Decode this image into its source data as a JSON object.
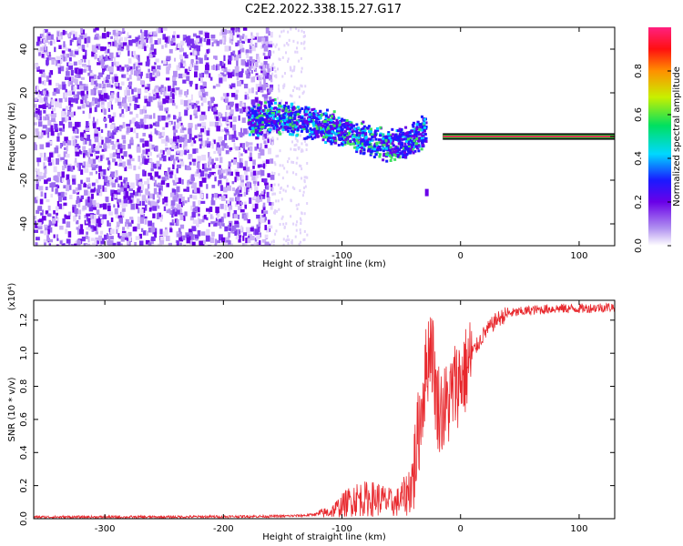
{
  "title": "C2E2.2022.338.15.27.G17",
  "chart_data": [
    {
      "type": "heatmap",
      "xlabel": "Height of straight line (km)",
      "ylabel": "Frequency (Hz)",
      "xlim": [
        -360,
        130
      ],
      "ylim": [
        -50,
        50
      ],
      "xticks": [
        -300,
        -200,
        -100,
        0,
        100
      ],
      "yticks": [
        -40,
        -20,
        0,
        20,
        40
      ],
      "colorbar": {
        "label": "Normalized spectral amplitude",
        "range": [
          0,
          1
        ],
        "ticks": [
          "0.0",
          "0.2",
          "0.4",
          "0.6",
          "0.8"
        ]
      },
      "ridge": {
        "x": [
          -170,
          -160,
          -140,
          -120,
          -100,
          -80,
          -60,
          -45,
          -35,
          -25,
          -15,
          -5,
          0,
          40,
          80,
          130
        ],
        "y": [
          8,
          10,
          8,
          6,
          3,
          -1,
          -4,
          -2,
          2,
          3,
          1,
          0,
          0,
          0,
          0,
          0
        ]
      }
    },
    {
      "type": "line",
      "xlabel": "Height of straight line (km)",
      "ylabel": "SNR (10 * v/v)",
      "y_multiplier": "(x10⁴)",
      "xlim": [
        -360,
        130
      ],
      "ylim": [
        0,
        1.32
      ],
      "xticks": [
        -300,
        -200,
        -100,
        0,
        100
      ],
      "yticks": [
        "0.0",
        "0.2",
        "0.4",
        "0.6",
        "0.8",
        "1.0",
        "1.2"
      ],
      "series": [
        {
          "color": "#e8282d",
          "x": [
            -360,
            -250,
            -150,
            -130,
            -110,
            -100,
            -90,
            -70,
            -55,
            -45,
            -40,
            -35,
            -30,
            -25,
            -20,
            -15,
            -10,
            -5,
            0,
            5,
            10,
            20,
            30,
            40,
            60,
            80,
            100,
            130
          ],
          "y": [
            0.01,
            0.01,
            0.015,
            0.02,
            0.04,
            0.08,
            0.12,
            0.12,
            0.09,
            0.15,
            0.25,
            0.55,
            0.85,
            1.1,
            0.7,
            0.65,
            0.7,
            0.8,
            0.85,
            0.9,
            1.0,
            1.12,
            1.2,
            1.24,
            1.26,
            1.27,
            1.27,
            1.28
          ]
        }
      ]
    }
  ]
}
